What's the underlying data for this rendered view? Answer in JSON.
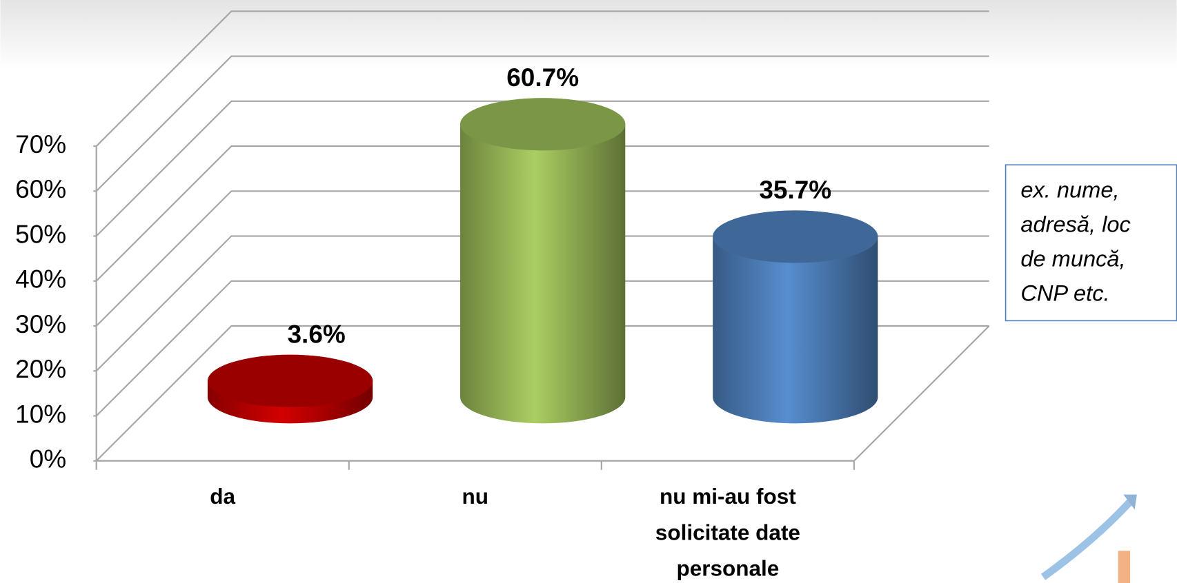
{
  "chart_data": {
    "type": "bar3d",
    "categories": [
      "da",
      "nu",
      "nu mi-au fost solicitate date personale"
    ],
    "values": [
      3.6,
      60.7,
      35.7
    ],
    "value_labels": [
      "3.6%",
      "60.7%",
      "35.7%"
    ],
    "colors": [
      "#c00000",
      "#9bbb59",
      "#4f81bd"
    ],
    "ylim": [
      0,
      70
    ],
    "yticks": [
      {
        "value": 0,
        "label": "0%"
      },
      {
        "value": 10,
        "label": "10%"
      },
      {
        "value": 20,
        "label": "20%"
      },
      {
        "value": 30,
        "label": "30%"
      },
      {
        "value": 40,
        "label": "40%"
      },
      {
        "value": 50,
        "label": "50%"
      },
      {
        "value": 60,
        "label": "60%"
      },
      {
        "value": 70,
        "label": "70%"
      }
    ],
    "grid": true,
    "annotation": "ex. nume, adresă, loc de muncă, CNP etc."
  }
}
